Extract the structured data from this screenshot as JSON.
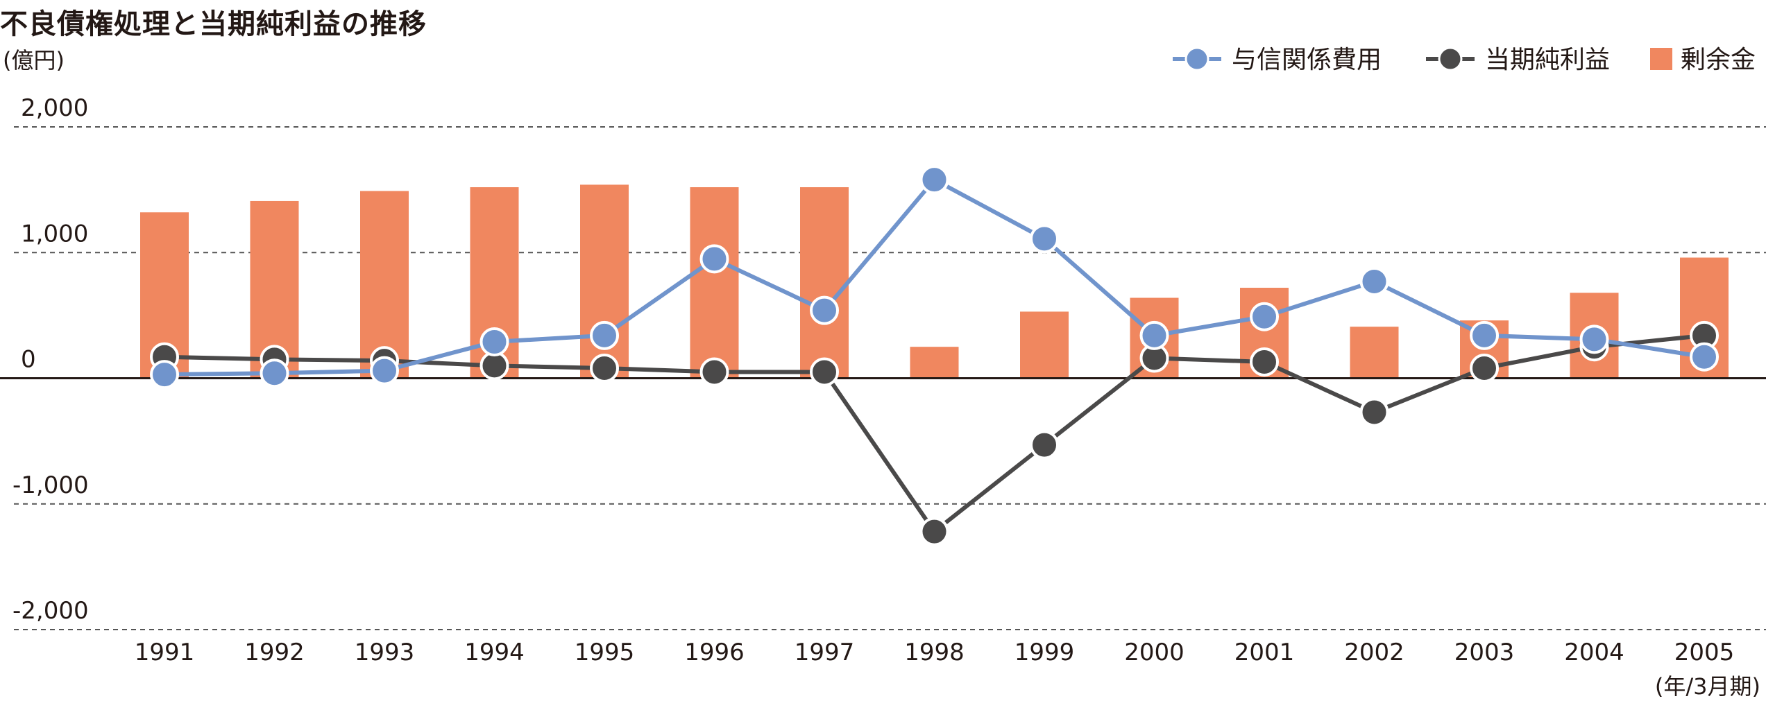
{
  "chart_data": {
    "type": "bar",
    "title": "不良債権処理と当期純利益の推移",
    "ylabel": "(億円)",
    "xlabel": "(年/3月期)",
    "ylim": [
      -2000,
      2000
    ],
    "yticks": [
      2000,
      1000,
      0,
      -1000,
      -2000
    ],
    "ytick_labels": [
      "2,000",
      "1,000",
      "0",
      "-1,000",
      "-2,000"
    ],
    "grid": true,
    "legend_position": "top-right",
    "categories": [
      "1991",
      "1992",
      "1993",
      "1994",
      "1995",
      "1996",
      "1997",
      "1998",
      "1999",
      "2000",
      "2001",
      "2002",
      "2003",
      "2004",
      "2005"
    ],
    "series": [
      {
        "name": "剰余金",
        "kind": "bar",
        "color": "#f0875f",
        "values": [
          1320,
          1410,
          1490,
          1520,
          1540,
          1520,
          1520,
          250,
          530,
          640,
          720,
          410,
          460,
          680,
          960
        ]
      },
      {
        "name": "与信関係費用",
        "kind": "line",
        "color": "#7094cc",
        "values": [
          30,
          40,
          60,
          290,
          340,
          950,
          540,
          1580,
          1110,
          340,
          490,
          770,
          340,
          310,
          170
        ]
      },
      {
        "name": "当期純利益",
        "kind": "line",
        "color": "#4a4949",
        "values": [
          170,
          150,
          140,
          100,
          80,
          50,
          50,
          -1220,
          -530,
          160,
          130,
          -270,
          80,
          250,
          340
        ]
      }
    ],
    "legend_order": [
      "与信関係費用",
      "当期純利益",
      "剰余金"
    ]
  }
}
